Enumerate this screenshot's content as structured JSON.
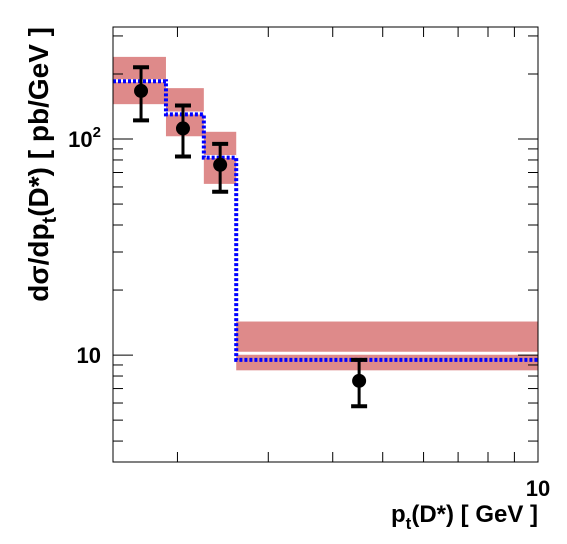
{
  "chart_data": {
    "type": "step",
    "x_scale": "log",
    "y_scale": "log",
    "xlim": [
      1.5,
      10
    ],
    "ylim": [
      3.2,
      330
    ],
    "grid": false,
    "xlabel_main": "p",
    "xlabel_sub": "t",
    "xlabel_rest": "(D*) [ GeV ]",
    "ylabel_main": "dσ/dp",
    "ylabel_sub": "t",
    "ylabel_rest": "(D*) [ pb/GeV ]",
    "x_tick_labels": [
      {
        "value": 10,
        "text": "10"
      }
    ],
    "y_tick_labels": [
      {
        "value": 10,
        "base": "10",
        "exp": ""
      },
      {
        "value": 100,
        "base": "10",
        "exp": "2"
      }
    ],
    "bins": [
      {
        "x_low": 1.5,
        "x_high": 1.9,
        "band_low": 145,
        "band_high": 240,
        "band_center": 186,
        "model": 185
      },
      {
        "x_low": 1.9,
        "x_high": 2.25,
        "band_low": 103,
        "band_high": 172,
        "band_center": 132,
        "model": 130
      },
      {
        "x_low": 2.25,
        "x_high": 2.6,
        "band_low": 62,
        "band_high": 108,
        "band_center": 83,
        "model": 82
      },
      {
        "x_low": 2.6,
        "x_high": 10,
        "band_low": 8.5,
        "band_high": 14.3,
        "band_center": 10.2,
        "model": 9.5
      }
    ],
    "points": [
      {
        "x": 1.7,
        "y": 167,
        "err_low": 122,
        "err_high": 215
      },
      {
        "x": 2.05,
        "y": 112,
        "err_low": 83,
        "err_high": 143
      },
      {
        "x": 2.42,
        "y": 76,
        "err_low": 57,
        "err_high": 95
      },
      {
        "x": 4.5,
        "y": 7.6,
        "err_low": 5.8,
        "err_high": 9.5
      }
    ],
    "colors": {
      "band": "#de8a8a",
      "model_line": "#0000ff",
      "points": "#000000",
      "band_center": "#ffffff"
    }
  }
}
